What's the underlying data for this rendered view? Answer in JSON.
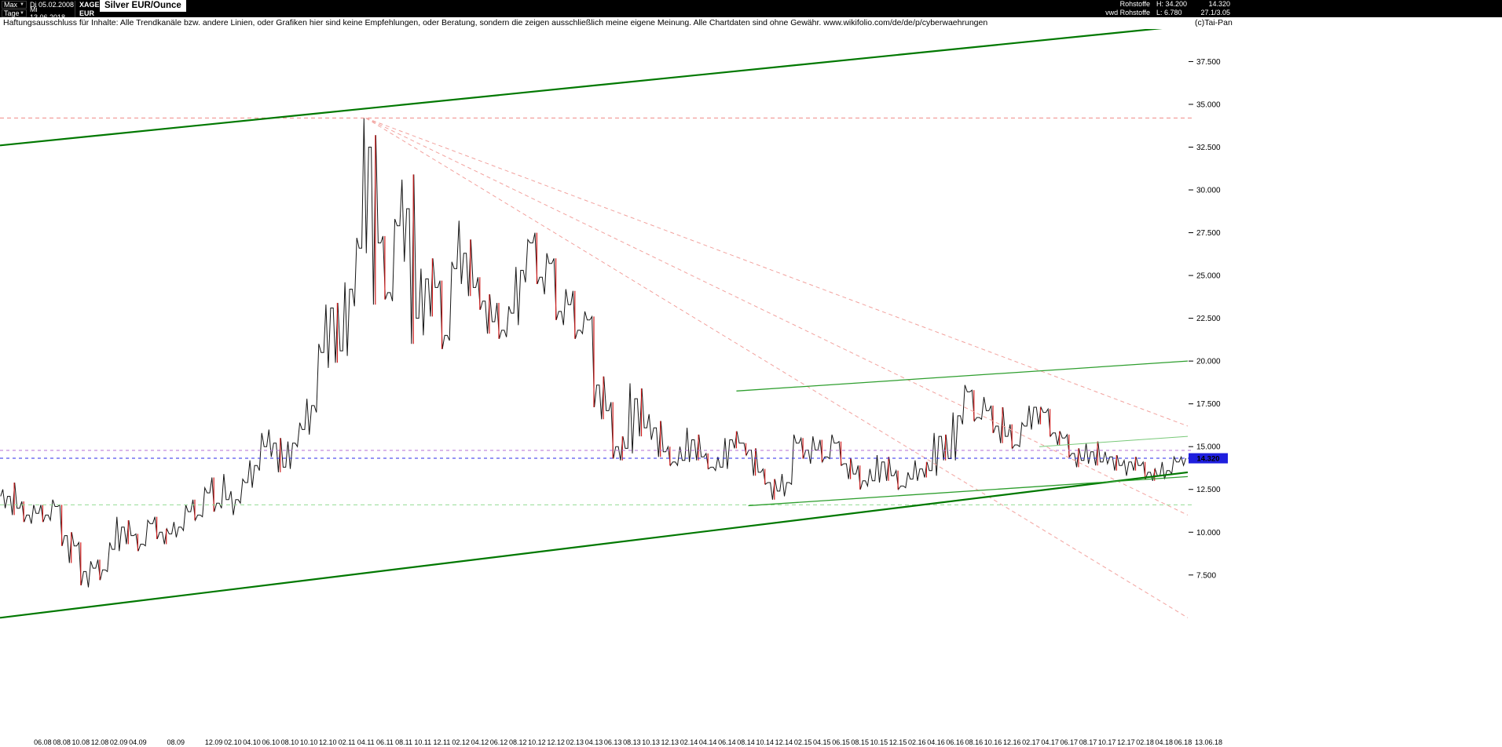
{
  "icons": {
    "dropdown_arrow": "▼"
  },
  "topbar": {
    "range_selector": "Max",
    "period_selector": "Tage",
    "date_from": "Di 05.02.2008",
    "date_to": "Mi 13.06.2018",
    "symbol": "XAGEUR",
    "currency": "EUR",
    "title": "Silver EUR/Ounce",
    "category": "Rohstoffe",
    "feed": "vwd Rohstoffe",
    "high_label": "H: 34.200",
    "low_label": "L: 6.780",
    "price": "14.320",
    "price_sub": "27.1/3.05"
  },
  "disclaimer": {
    "text": "Haftungsausschluss für Inhalte: Alle Trendkanäle bzw. andere Linien, oder Grafiken hier sind keine Empfehlungen, oder Beratung, sondern die zeigen ausschließlich meine eigene Meinung. Alle Chartdaten sind ohne Gewähr.  www.wikifolio.com/de/de/p/cyberwaehrungen",
    "copyright": "(c)Tai-Pan"
  },
  "chart_data": {
    "type": "candlestick",
    "title": "Silver EUR/Ounce",
    "symbol": "XAGEUR",
    "currency": "EUR",
    "range_from": "05.02.2008",
    "range_to": "13.06.2018",
    "granularity_note": "monthly OHLC estimated from daily chart pixels",
    "last": 14.32,
    "last_price_label": "14.320",
    "last_price_box_color": "#1f1fde",
    "high_alltime": 34.2,
    "low_alltime": 6.78,
    "ylim": [
      -2.0,
      39.4
    ],
    "grid": false,
    "end_date_label": "13.06.18",
    "y_ticks": [
      {
        "value": 37.5,
        "label": "37.500"
      },
      {
        "value": 35.0,
        "label": "35.000"
      },
      {
        "value": 32.5,
        "label": "32.500"
      },
      {
        "value": 30.0,
        "label": "30.000"
      },
      {
        "value": 27.5,
        "label": "27.500"
      },
      {
        "value": 25.0,
        "label": "25.000"
      },
      {
        "value": 22.5,
        "label": "22.500"
      },
      {
        "value": 20.0,
        "label": "20.000"
      },
      {
        "value": 17.5,
        "label": "17.500"
      },
      {
        "value": 15.0,
        "label": "15.000"
      },
      {
        "value": 12.5,
        "label": "12.500"
      },
      {
        "value": 10.0,
        "label": "10.000"
      },
      {
        "value": 7.5,
        "label": "7.500"
      }
    ],
    "x_labels": [
      "06.08",
      "08.08",
      "10.08",
      "12.08",
      "02.09",
      "04.09",
      "08.09",
      "12.09",
      "02.10",
      "04.10",
      "06.10",
      "08.10",
      "10.10",
      "12.10",
      "02.11",
      "04.11",
      "06.11",
      "08.11",
      "10.11",
      "12.11",
      "02.12",
      "04.12",
      "06.12",
      "08.12",
      "10.12",
      "12.12",
      "02.13",
      "04.13",
      "06.13",
      "08.13",
      "10.13",
      "12.13",
      "02.14",
      "04.14",
      "06.14",
      "08.14",
      "10.14",
      "12.14",
      "02.15",
      "04.15",
      "06.15",
      "08.15",
      "10.15",
      "12.15",
      "02.16",
      "04.16",
      "06.16",
      "08.16",
      "10.16",
      "12.16",
      "02.17",
      "04.17",
      "06.17",
      "08.17",
      "10.17",
      "12.17",
      "02.18",
      "04.18",
      "06.18"
    ],
    "months_start": "2008-02",
    "high": [
      12.5,
      12.9,
      11.8,
      11.6,
      11.6,
      11.9,
      11.6,
      10.0,
      9.4,
      8.3,
      8.4,
      9.4,
      10.9,
      10.7,
      9.9,
      10.7,
      10.9,
      10.2,
      10.6,
      11.6,
      11.9,
      12.6,
      13.2,
      13.4,
      12.4,
      13.1,
      14.2,
      15.8,
      16.0,
      15.5,
      15.3,
      16.4,
      17.8,
      21.0,
      23.3,
      23.4,
      24.6,
      27.2,
      34.2,
      33.2,
      27.3,
      28.3,
      30.6,
      30.9,
      25.4,
      26.0,
      24.7,
      25.8,
      28.2,
      27.1,
      24.9,
      23.9,
      23.4,
      23.2,
      25.5,
      27.1,
      27.5,
      26.3,
      26.0,
      24.2,
      24.1,
      22.9,
      22.6,
      19.1,
      17.6,
      15.6,
      18.7,
      18.4,
      16.9,
      16.5,
      15.0,
      15.0,
      16.1,
      15.7,
      14.6,
      14.4,
      15.5,
      15.9,
      15.2,
      14.9,
      13.7,
      13.1,
      13.4,
      15.7,
      15.5,
      15.6,
      15.4,
      15.7,
      15.3,
      14.3,
      13.9,
      13.7,
      14.5,
      14.4,
      13.6,
      13.5,
      14.2,
      14.1,
      15.8,
      15.7,
      17.0,
      18.6,
      18.3,
      17.9,
      17.4,
      17.3,
      16.3,
      16.4,
      17.4,
      17.3,
      17.2,
      15.9,
      15.7,
      14.9,
      15.2,
      15.3,
      14.7,
      14.5,
      14.2,
      14.4,
      14.1,
      13.7,
      14.1,
      14.4,
      14.4
    ],
    "low": [
      11.4,
      11.0,
      10.6,
      10.5,
      10.6,
      10.7,
      9.2,
      8.2,
      6.9,
      6.78,
      7.2,
      7.7,
      8.9,
      9.3,
      8.9,
      9.2,
      9.6,
      9.3,
      9.7,
      10.1,
      10.7,
      10.9,
      11.2,
      11.4,
      11.0,
      11.7,
      12.6,
      13.6,
      14.4,
      13.5,
      13.7,
      15.0,
      15.7,
      17.0,
      19.6,
      19.9,
      20.3,
      23.2,
      26.3,
      23.3,
      23.6,
      23.5,
      25.8,
      21.0,
      21.5,
      22.6,
      20.7,
      21.2,
      24.5,
      23.8,
      23.0,
      21.6,
      21.3,
      21.4,
      22.1,
      24.6,
      24.5,
      23.9,
      22.4,
      22.1,
      21.3,
      21.6,
      17.3,
      16.6,
      14.3,
      14.2,
      14.6,
      15.6,
      15.4,
      14.4,
      13.9,
      13.9,
      14.1,
      14.2,
      13.7,
      13.6,
      13.7,
      14.9,
      14.5,
      13.3,
      12.8,
      11.9,
      12.1,
      12.8,
      14.3,
      14.0,
      14.1,
      14.3,
      13.9,
      13.1,
      12.5,
      12.7,
      12.9,
      13.0,
      12.5,
      12.6,
      13.0,
      13.2,
      13.3,
      14.2,
      14.2,
      16.3,
      16.5,
      16.6,
      15.8,
      15.2,
      14.9,
      15.0,
      16.0,
      16.3,
      15.6,
      15.1,
      14.4,
      13.8,
      14.0,
      13.9,
      14.0,
      13.6,
      13.3,
      13.6,
      13.1,
      13.0,
      13.1,
      13.4,
      13.9
    ],
    "close": [
      12.1,
      11.4,
      11.0,
      11.1,
      11.0,
      11.5,
      9.8,
      9.2,
      7.7,
      7.9,
      7.8,
      9.0,
      10.3,
      9.8,
      9.3,
      10.5,
      10.0,
      9.9,
      10.3,
      11.2,
      11.0,
      12.3,
      11.7,
      11.9,
      11.9,
      12.9,
      13.9,
      15.0,
      15.2,
      13.8,
      15.2,
      16.0,
      17.4,
      20.5,
      23.1,
      20.6,
      24.2,
      26.6,
      32.5,
      26.9,
      24.0,
      27.9,
      28.9,
      22.5,
      24.8,
      24.3,
      21.5,
      25.4,
      26.3,
      24.3,
      23.5,
      22.3,
      21.8,
      22.8,
      25.3,
      26.9,
      24.9,
      25.7,
      22.9,
      23.3,
      21.8,
      22.4,
      18.6,
      17.1,
      15.0,
      14.9,
      17.8,
      16.1,
      16.1,
      14.7,
      14.1,
      14.2,
      15.4,
      14.4,
      13.8,
      13.8,
      15.4,
      15.2,
      14.8,
      13.5,
      12.9,
      12.4,
      12.9,
      15.2,
      14.8,
      14.8,
      14.4,
      15.2,
      14.0,
      13.4,
      13.0,
      13.0,
      14.1,
      13.3,
      12.7,
      13.1,
      13.7,
      13.6,
      15.6,
      14.3,
      16.8,
      18.2,
      16.7,
      17.1,
      16.2,
      15.6,
      15.1,
      16.2,
      17.3,
      17.0,
      15.8,
      15.5,
      14.6,
      14.2,
      14.7,
      14.1,
      14.4,
      13.9,
      14.1,
      13.9,
      13.5,
      13.3,
      13.6,
      14.1,
      14.32
    ],
    "overlays": [
      {
        "name": "fan-line-1",
        "kind": "trend",
        "color": "#f2a29e",
        "width": 1,
        "dash": "5,4",
        "from": [
          0.308,
          34.2
        ],
        "to": [
          1.0,
          16.2
        ]
      },
      {
        "name": "fan-line-2",
        "kind": "trend",
        "color": "#f2a29e",
        "width": 1,
        "dash": "5,4",
        "from": [
          0.308,
          34.2
        ],
        "to": [
          1.0,
          11.0
        ]
      },
      {
        "name": "fan-line-3",
        "kind": "trend",
        "color": "#f2a29e",
        "width": 1,
        "dash": "5,4",
        "from": [
          0.308,
          34.2
        ],
        "to": [
          1.0,
          5.0
        ]
      },
      {
        "name": "all-time-high-line",
        "kind": "hline",
        "color": "#f08a86",
        "width": 1,
        "dash": "5,4",
        "price": 34.2
      },
      {
        "name": "support-level-light-green",
        "kind": "hline",
        "color": "#93db93",
        "width": 1,
        "dash": "5,4",
        "price": 11.6
      },
      {
        "name": "upper-channel-line",
        "kind": "trend",
        "color": "#007800",
        "width": 2.2,
        "dash": "",
        "from": [
          0.0,
          32.6
        ],
        "to": [
          1.0,
          39.6
        ]
      },
      {
        "name": "lower-channel-line",
        "kind": "trend",
        "color": "#007800",
        "width": 2.2,
        "dash": "",
        "from": [
          0.0,
          5.0
        ],
        "to": [
          1.0,
          13.5
        ]
      },
      {
        "name": "resistance-2016-line",
        "kind": "trend",
        "color": "#2e9e2e",
        "width": 1.3,
        "dash": "",
        "from": [
          0.62,
          18.25
        ],
        "to": [
          1.0,
          20.0
        ]
      },
      {
        "name": "support-recent-line",
        "kind": "trend",
        "color": "#2e9e2e",
        "width": 1.3,
        "dash": "",
        "from": [
          0.63,
          11.55
        ],
        "to": [
          1.0,
          13.25
        ]
      },
      {
        "name": "minor-recent-line",
        "kind": "trend",
        "color": "#79c979",
        "width": 1,
        "dash": "",
        "from": [
          0.875,
          15.0
        ],
        "to": [
          1.0,
          15.6
        ]
      },
      {
        "name": "purple-level-line",
        "kind": "hline",
        "color": "#b36fd6",
        "width": 1,
        "dash": "4,4",
        "price": 14.78
      },
      {
        "name": "last-price-line",
        "kind": "hline",
        "color": "#2828e8",
        "width": 1,
        "dash": "4,4",
        "price": 14.32
      }
    ]
  }
}
